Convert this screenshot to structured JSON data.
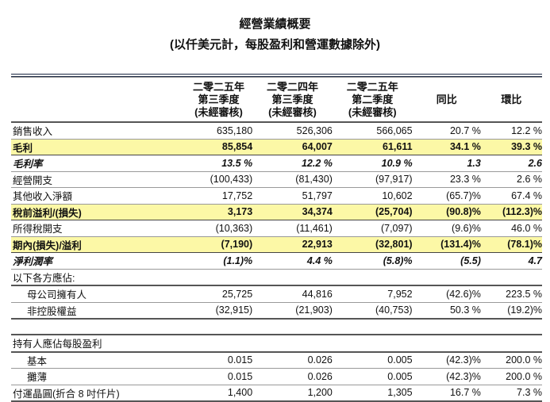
{
  "title": "經營業績概要",
  "subtitle": "(以仟美元計，每股盈利和營運數據除外)",
  "columns": [
    {
      "line1": "二零二五年",
      "line2": "第三季度",
      "line3": "(未經審核)"
    },
    {
      "line1": "二零二四年",
      "line2": "第三季度",
      "line3": "(未經審核)"
    },
    {
      "line1": "二零二五年",
      "line2": "第二季度",
      "line3": "(未經審核)"
    },
    {
      "line1": "",
      "line2": "同比",
      "line3": ""
    },
    {
      "line1": "",
      "line2": "環比",
      "line3": ""
    }
  ],
  "highlight_color": "#fcf8a6",
  "rows": [
    {
      "label": "銷售收入",
      "style": "normal",
      "values": [
        "635,180",
        "526,306",
        "566,065",
        "20.7 %",
        "12.2 %"
      ]
    },
    {
      "label": "毛利",
      "style": "highlight",
      "values": [
        "85,854",
        "64,007",
        "61,611",
        "34.1 %",
        "39.3 %"
      ]
    },
    {
      "label": "毛利率",
      "style": "italic",
      "values": [
        "13.5 %",
        "12.2 %",
        "10.9 %",
        "1.3",
        "2.6"
      ]
    },
    {
      "label": "經營開支",
      "style": "normal",
      "values": [
        "(100,433)",
        "(81,430)",
        "(97,917)",
        "23.3 %",
        "2.6 %"
      ]
    },
    {
      "label": "其他收入淨額",
      "style": "normal",
      "values": [
        "17,752",
        "51,797",
        "10,602",
        "(65.7)%",
        "67.4 %"
      ]
    },
    {
      "label": "稅前溢利/(損失)",
      "style": "highlight",
      "values": [
        "3,173",
        "34,374",
        "(25,704)",
        "(90.8)%",
        "(112.3)%"
      ]
    },
    {
      "label": "所得稅開支",
      "style": "normal",
      "values": [
        "(10,363)",
        "(11,461)",
        "(7,097)",
        "(9.6)%",
        "46.0 %"
      ]
    },
    {
      "label": "期內(損失)/溢利",
      "style": "highlight",
      "values": [
        "(7,190)",
        "22,913",
        "(32,801)",
        "(131.4)%",
        "(78.1)%"
      ]
    },
    {
      "label": "淨利潤率",
      "style": "italic",
      "values": [
        "(1.1)%",
        "4.4 %",
        "(5.8)%",
        "(5.5)",
        "4.7"
      ]
    },
    {
      "label": "以下各方應佔:",
      "style": "section",
      "values": [
        "",
        "",
        "",
        "",
        ""
      ]
    },
    {
      "label": "母公司擁有人",
      "style": "indent",
      "values": [
        "25,725",
        "44,816",
        "7,952",
        "(42.6)%",
        "223.5 %"
      ]
    },
    {
      "label": "非控股權益",
      "style": "indent",
      "values": [
        "(32,915)",
        "(21,903)",
        "(40,753)",
        "50.3 %",
        "(19.2)%"
      ]
    },
    {
      "label": "持有人應佔每股盈利",
      "style": "section",
      "values": [
        "",
        "",
        "",
        "",
        ""
      ]
    },
    {
      "label": "基本",
      "style": "indent",
      "values": [
        "0.015",
        "0.026",
        "0.005",
        "(42.3)%",
        "200.0 %"
      ]
    },
    {
      "label": "攤薄",
      "style": "indent",
      "values": [
        "0.015",
        "0.026",
        "0.005",
        "(42.3)%",
        "200.0 %"
      ]
    },
    {
      "label": "付運晶圓(折合 8 吋仟片)",
      "style": "last",
      "values": [
        "1,400",
        "1,200",
        "1,305",
        "16.7 %",
        "7.3 %"
      ]
    }
  ]
}
